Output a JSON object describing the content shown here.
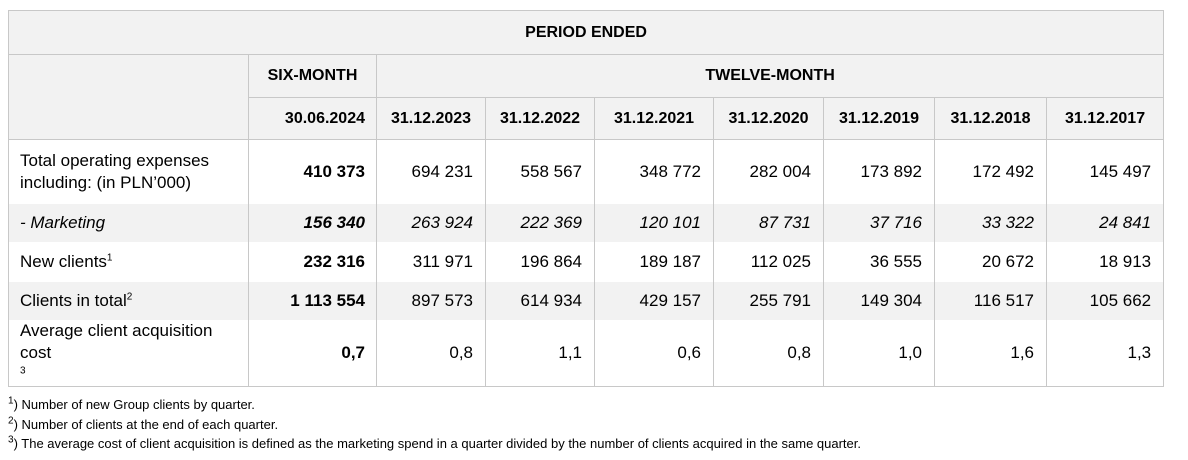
{
  "header": {
    "period": "PERIOD ENDED",
    "six_month": "SIX-MONTH",
    "twelve_month": "TWELVE-MONTH",
    "dates": [
      "30.06.2024",
      "31.12.2023",
      "31.12.2022",
      "31.12.2021",
      "31.12.2020",
      "31.12.2019",
      "31.12.2018",
      "31.12.2017"
    ]
  },
  "rows": [
    {
      "label": "Total operating expenses including: (in PLN’000)",
      "values": [
        "410 373",
        "694 231",
        "558 567",
        "348 772",
        "282 004",
        "173 892",
        "172 492",
        "145 497"
      ]
    },
    {
      "label": "- Marketing",
      "values": [
        "156 340",
        "263 924",
        "222 369",
        "120 101",
        "87 731",
        "37 716",
        "33 322",
        "24 841"
      ]
    },
    {
      "label": "New clients",
      "sup": "1",
      "values": [
        "232 316",
        "311 971",
        "196 864",
        "189 187",
        "112 025",
        "36 555",
        "20 672",
        "18 913"
      ]
    },
    {
      "label": "Clients in total",
      "sup": "2",
      "values": [
        "1 113 554",
        "897 573",
        "614 934",
        "429 157",
        "255 791",
        "149 304",
        "116 517",
        "105 662"
      ]
    },
    {
      "label": "Average client acquisition cost",
      "sup": "3",
      "values": [
        "0,7",
        "0,8",
        "1,1",
        "0,6",
        "0,8",
        "1,0",
        "1,6",
        "1,3"
      ]
    }
  ],
  "footnotes": [
    {
      "mark": "1",
      "suffix": ")",
      "text": " Number of new Group clients by quarter."
    },
    {
      "mark": "2",
      "suffix": ")",
      "text": " Number of clients at the end of each quarter."
    },
    {
      "mark": "3",
      "suffix": ")",
      "text": " The average cost of client acquisition is defined as the marketing spend in a quarter divided by the number of clients acquired in the same quarter."
    }
  ]
}
